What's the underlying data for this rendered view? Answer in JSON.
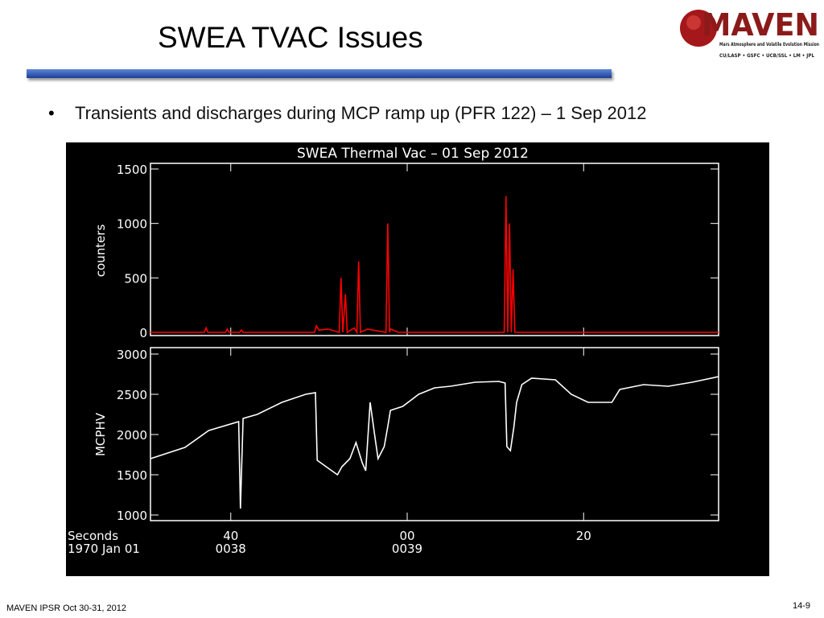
{
  "slide": {
    "title": "SWEA TVAC Issues",
    "bullet": "Transients and discharges during MCP ramp up (PFR 122) – 1 Sep 2012",
    "footer": "MAVEN IPSR  Oct 30-31, 2012",
    "page": "14-9",
    "logo": {
      "name": "MAVEN",
      "tagline": "Mars Atmosphere and Volatile Evolution Mission",
      "partners": "CU/LASP • GSFC • UCB/SSL • LM • JPL"
    }
  },
  "figure_title": "SWEA Thermal Vac – 01 Sep 2012",
  "chart_data": [
    {
      "type": "line",
      "ylabel": "counters",
      "color": "#ff0000",
      "ylim": [
        0,
        1500
      ],
      "yticks": [
        0,
        500,
        1000,
        1500
      ],
      "xlim": [
        30.9,
        95.3
      ],
      "xticks": [
        {
          "value": 40,
          "label": "40"
        },
        {
          "value": 60,
          "label": "00"
        },
        {
          "value": 80,
          "label": "20"
        }
      ],
      "x": [
        30.9,
        37.0,
        37.2,
        37.4,
        39.4,
        39.6,
        39.8,
        41.0,
        41.2,
        41.4,
        49.5,
        49.7,
        50.0,
        51.0,
        52.3,
        52.5,
        52.7,
        53.0,
        53.2,
        54.0,
        54.3,
        54.5,
        54.7,
        55.5,
        57.6,
        57.8,
        58.0,
        58.1,
        59.0,
        71.0,
        71.2,
        71.4,
        71.6,
        71.8,
        72.0,
        72.2,
        95.3
      ],
      "values": [
        0,
        0,
        40,
        0,
        0,
        30,
        0,
        0,
        20,
        0,
        0,
        60,
        20,
        30,
        0,
        500,
        0,
        350,
        0,
        40,
        0,
        650,
        0,
        30,
        0,
        1000,
        0,
        30,
        0,
        0,
        1250,
        0,
        1000,
        0,
        580,
        0,
        0
      ]
    },
    {
      "type": "line",
      "ylabel": "MCPHV",
      "color": "#ffffff",
      "ylim": [
        1000,
        3000
      ],
      "yticks": [
        1000,
        1500,
        2000,
        2500,
        3000
      ],
      "xlim": [
        30.9,
        95.3
      ],
      "xticks": [
        {
          "value": 40,
          "label": "40"
        },
        {
          "value": 60,
          "label": "00"
        },
        {
          "value": 80,
          "label": "20"
        }
      ],
      "minute_ticks": [
        {
          "value": 40,
          "label": "0038"
        },
        {
          "value": 60,
          "label": "0039"
        }
      ],
      "xlabel": "Seconds",
      "xlabel2": "1970 Jan 01",
      "x": [
        30.9,
        34.8,
        37.5,
        40.9,
        41.1,
        41.4,
        43.0,
        45.8,
        48.5,
        49.6,
        49.8,
        51.2,
        52.1,
        52.6,
        53.5,
        54.2,
        54.9,
        55.3,
        55.8,
        56.3,
        56.7,
        57.4,
        57.8,
        58.1,
        59.5,
        61.3,
        63.1,
        64.9,
        67.7,
        70.4,
        71.1,
        71.3,
        71.7,
        72.1,
        72.4,
        73.0,
        74.1,
        76.8,
        78.6,
        80.5,
        83.2,
        84.1,
        86.8,
        89.6,
        92.3,
        95.3
      ],
      "values": [
        1700,
        1840,
        2050,
        2160,
        1080,
        2200,
        2250,
        2400,
        2500,
        2520,
        1680,
        1570,
        1500,
        1600,
        1700,
        1900,
        1650,
        1550,
        2400,
        2000,
        1700,
        1850,
        2100,
        2300,
        2350,
        2500,
        2580,
        2600,
        2650,
        2660,
        2640,
        1850,
        1800,
        2100,
        2400,
        2620,
        2700,
        2680,
        2500,
        2400,
        2400,
        2560,
        2620,
        2600,
        2650,
        2720
      ]
    }
  ]
}
